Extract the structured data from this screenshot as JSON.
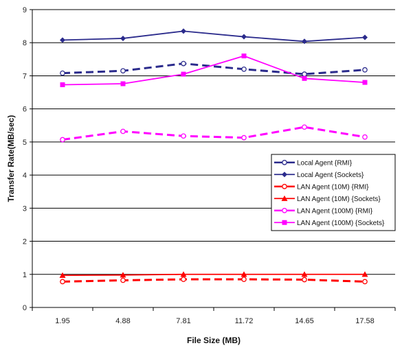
{
  "chart_data": {
    "type": "line",
    "title": "",
    "xlabel": "File Size (MB)",
    "ylabel": "Transfer Rate(MB/sec)",
    "categories": [
      "1.95",
      "4.88",
      "7.81",
      "11.72",
      "14.65",
      "17.58"
    ],
    "ylim": [
      0,
      9
    ],
    "yticks": [
      "0",
      "1",
      "2",
      "3",
      "4",
      "5",
      "6",
      "7",
      "8",
      "9"
    ],
    "grid": "horizontal",
    "legend_position": "right",
    "series": [
      {
        "name": "Local Agent {RMI}",
        "values": [
          7.08,
          7.15,
          7.37,
          7.2,
          7.05,
          7.18
        ],
        "color": "#2b2b8c",
        "dashed": true,
        "marker": "circle-open"
      },
      {
        "name": "Local Agent {Sockets}",
        "values": [
          8.08,
          8.13,
          8.35,
          8.18,
          8.04,
          8.16
        ],
        "color": "#2b2b8c",
        "dashed": false,
        "marker": "diamond"
      },
      {
        "name": "LAN Agent (10M) {RMI}",
        "values": [
          0.78,
          0.82,
          0.85,
          0.85,
          0.84,
          0.78
        ],
        "color": "#ff0000",
        "dashed": true,
        "marker": "circle-open"
      },
      {
        "name": "LAN Agent (10M) {Sockets}",
        "values": [
          0.97,
          0.98,
          1.0,
          1.0,
          1.0,
          1.0
        ],
        "color": "#ff0000",
        "dashed": false,
        "marker": "triangle"
      },
      {
        "name": "LAN Agent (100M) {RMI}",
        "values": [
          5.07,
          5.32,
          5.18,
          5.13,
          5.45,
          5.15
        ],
        "color": "#ff00ff",
        "dashed": true,
        "marker": "circle-open"
      },
      {
        "name": "LAN Agent (100M) {Sockets}",
        "values": [
          6.73,
          6.76,
          7.05,
          7.6,
          6.92,
          6.8
        ],
        "color": "#ff00ff",
        "dashed": false,
        "marker": "square"
      }
    ]
  }
}
